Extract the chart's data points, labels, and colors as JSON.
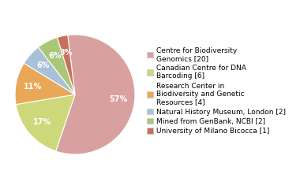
{
  "labels": [
    "Centre for Biodiversity\nGenomics [20]",
    "Canadian Centre for DNA\nBarcoding [6]",
    "Research Center in\nBiodiversity and Genetic\nResources [4]",
    "Natural History Museum, London [2]",
    "Mined from GenBank, NCBI [2]",
    "University of Milano Bicocca [1]"
  ],
  "values": [
    20,
    6,
    4,
    2,
    2,
    1
  ],
  "colors": [
    "#d9a0a0",
    "#ccd87a",
    "#e8a858",
    "#a8c0d8",
    "#a8c878",
    "#c87060"
  ],
  "startangle": 97,
  "background_color": "#ffffff",
  "fontsize": 7,
  "legend_fontsize": 6.5
}
